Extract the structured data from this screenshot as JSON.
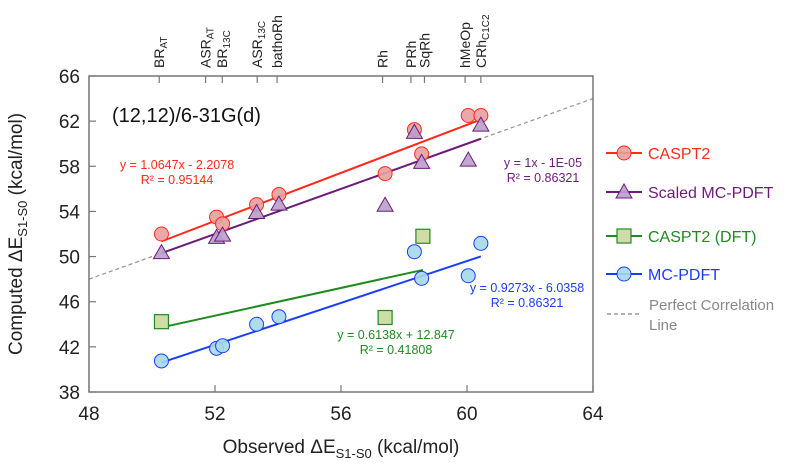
{
  "chart_data": {
    "type": "scatter",
    "title": "(12,12)/6-31G(d)",
    "xlabel": {
      "main": "Observed ΔE",
      "sub": "S1-S0",
      "unit": " (kcal/mol)"
    },
    "ylabel": {
      "main": "Computed ΔE",
      "sub": "S1-S0",
      "unit": " (kcal/mol)"
    },
    "xlim": [
      48,
      64
    ],
    "ylim": [
      38,
      66
    ],
    "xticks": [
      "48",
      "52",
      "56",
      "60",
      "64"
    ],
    "yticks": [
      "38",
      "42",
      "46",
      "50",
      "54",
      "58",
      "62",
      "66"
    ],
    "top_axis_labels": [
      {
        "main": "BR",
        "sub": "AT",
        "x": 50.23
      },
      {
        "main": "ASR",
        "sub": "AT",
        "x": 51.7
      },
      {
        "main": "BR",
        "sub": "13C",
        "x": 52.23
      },
      {
        "main": "ASR",
        "sub": "13C",
        "x": 53.34
      },
      {
        "main": "bathoRh",
        "sub": "",
        "x": 53.97
      },
      {
        "main": "Rh",
        "sub": "",
        "x": 57.32
      },
      {
        "main": "PRh",
        "sub": "",
        "x": 58.22
      },
      {
        "main": "SqRh",
        "sub": "",
        "x": 58.65
      },
      {
        "main": "hMeOp",
        "sub": "",
        "x": 59.94
      },
      {
        "main": "CRh",
        "sub": "C1C2",
        "x": 60.44
      }
    ],
    "series": [
      {
        "name": "CASPT2",
        "marker": "circle",
        "color": "#ff2a1a",
        "fill": "#e8a0a0",
        "x": [
          50.3,
          52.05,
          52.24,
          53.32,
          54.03,
          57.4,
          58.33,
          58.56,
          60.04,
          60.44
        ],
        "y": [
          52.0,
          53.5,
          52.9,
          54.6,
          55.5,
          57.35,
          61.25,
          59.1,
          62.5,
          62.5
        ],
        "trend": {
          "slope": 1.0647,
          "intercept": -2.2078,
          "equation": "y = 1.0647x - 2.2078",
          "r2": "R² = 0.95144"
        }
      },
      {
        "name": "Scaled MC-PDFT",
        "marker": "triangle",
        "color": "#6e1a7a",
        "fill": "#b9a0cc",
        "x": [
          50.3,
          52.05,
          52.24,
          53.32,
          54.03,
          57.4,
          58.33,
          58.56,
          60.04,
          60.44
        ],
        "y": [
          50.35,
          51.7,
          51.9,
          53.9,
          54.65,
          54.55,
          61.0,
          58.35,
          58.55,
          61.65
        ],
        "trend": {
          "slope": 1,
          "intercept": -1e-05,
          "equation": "y = 1x - 1E-05",
          "r2": "R² = 0.86321"
        }
      },
      {
        "name": "CASPT2 (DFT)",
        "marker": "square",
        "color": "#1f8a1f",
        "fill": "#cfdcaa",
        "x": [
          50.3,
          57.4,
          58.6
        ],
        "y": [
          44.23,
          44.6,
          51.8
        ],
        "trend": {
          "slope": 0.6138,
          "intercept": 12.847,
          "equation": "y = 0.6138x + 12.847",
          "r2": "R² = 0.41808"
        }
      },
      {
        "name": "MC-PDFT",
        "marker": "circle",
        "color": "#1a3cff",
        "fill": "#a6d8e8",
        "x": [
          50.3,
          52.05,
          52.24,
          53.32,
          54.03,
          58.33,
          58.56,
          60.04,
          60.44
        ],
        "y": [
          40.75,
          41.87,
          42.1,
          44.0,
          44.67,
          50.43,
          48.07,
          48.3,
          51.17
        ],
        "trend": {
          "slope": 0.9273,
          "intercept": -6.0358,
          "equation": "y = 0.9273x - 6.0358",
          "r2": "R² = 0.86321"
        }
      }
    ],
    "reference_line": {
      "name": "Perfect Correlation Line",
      "name_line1": "Perfect Correlation",
      "name_line2": "Line",
      "slope": 1,
      "intercept": 0,
      "color": "#999999"
    },
    "legend_placement": "right",
    "grid": false
  }
}
